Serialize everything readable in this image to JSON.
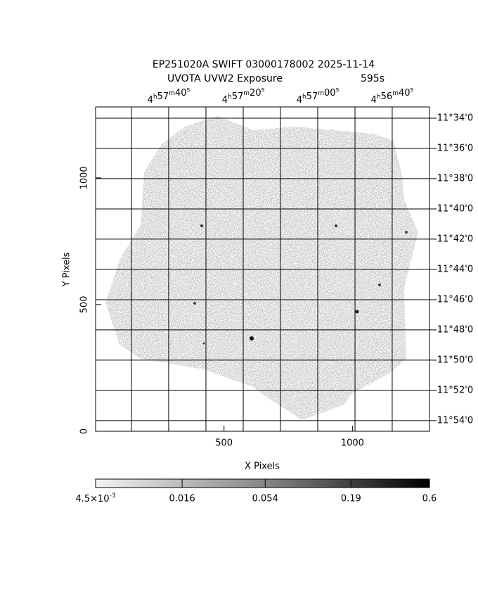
{
  "chart_data": {
    "type": "image",
    "title": "EP251020A SWIFT 03000178002 2025-11-14",
    "subtitle": "UVOTA UVW2 Exposure",
    "exposure": "595s",
    "xlabel": "X Pixels",
    "ylabel": "Y Pixels",
    "xlim": [
      0,
      1300
    ],
    "ylim": [
      0,
      1280
    ],
    "xticks": [
      500,
      1000
    ],
    "yticks": [
      0,
      500,
      1000
    ],
    "x2lim": [
      74.4984,
      74.125
    ],
    "x2ticks": [
      {
        "value": 74.4167,
        "label": "4h57m40s"
      },
      {
        "value": 74.3333,
        "label": "4h57m20s"
      },
      {
        "value": 74.25,
        "label": "4h57m00s"
      },
      {
        "value": 74.1667,
        "label": "4h56m40s"
      }
    ],
    "x2minorticks": [
      74.4583,
      74.375,
      74.2917,
      74.2083
    ],
    "y2lim": [
      -11.9117,
      -11.5543
    ],
    "y2ticks": [
      {
        "value": -11.5667,
        "label": "-11°34'0"
      },
      {
        "value": -11.6,
        "label": "-11°36'0"
      },
      {
        "value": -11.6333,
        "label": "-11°38'0"
      },
      {
        "value": -11.6667,
        "label": "-11°40'0"
      },
      {
        "value": -11.7,
        "label": "-11°42'0"
      },
      {
        "value": -11.7333,
        "label": "-11°44'0"
      },
      {
        "value": -11.7667,
        "label": "-11°46'0"
      },
      {
        "value": -11.8,
        "label": "-11°48'0"
      },
      {
        "value": -11.8333,
        "label": "-11°50'0"
      },
      {
        "value": -11.8667,
        "label": "-11°52'0"
      },
      {
        "value": -11.9,
        "label": "-11°54'0"
      }
    ],
    "grid": true,
    "colorbar": {
      "scale": "log",
      "lim": [
        0.0045,
        0.6
      ],
      "ticks": [
        {
          "value": 0.0045,
          "label": "4.5×10-3"
        },
        0.016,
        0.054,
        0.19,
        0.6
      ]
    }
  }
}
